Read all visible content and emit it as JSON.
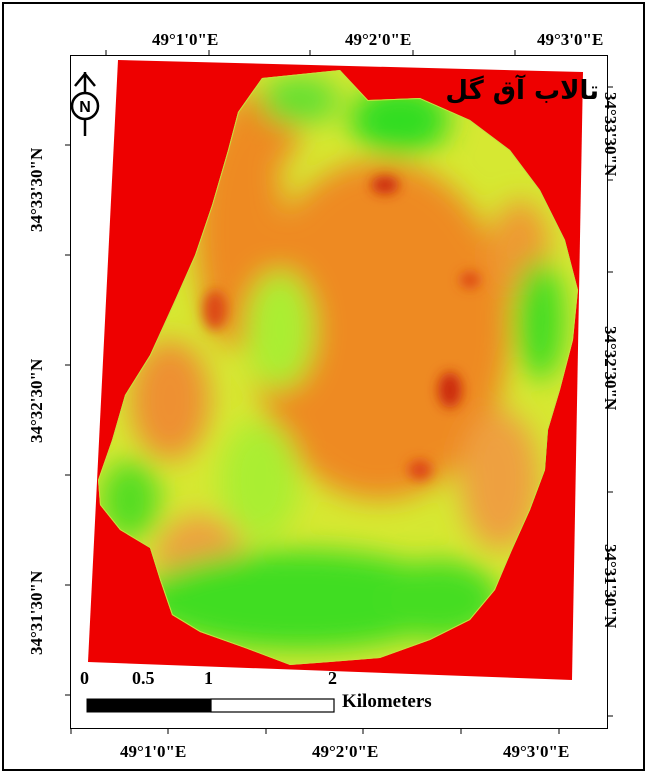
{
  "map": {
    "title": "تالاب آق گل",
    "north_letter": "N",
    "top_labels": [
      "49°1'0\"E",
      "49°2'0\"E",
      "49°3'0\"E"
    ],
    "bottom_labels": [
      "49°1'0\"E",
      "49°2'0\"E",
      "49°3'0\"E"
    ],
    "left_labels": [
      "34°33'30\"N",
      "34°32'30\"N",
      "34°31'30\"N"
    ],
    "right_labels": [
      "34°33'30\"N",
      "34°32'30\"N",
      "34°31'30\"N"
    ],
    "scale": {
      "ticks": [
        "0",
        "0.5",
        "1",
        "2"
      ],
      "unit": "Kilometers"
    },
    "colors": {
      "background_raster": "#ee0000",
      "high": "#33dd22",
      "mid": "#ddee33",
      "low": "#ee7722"
    }
  }
}
